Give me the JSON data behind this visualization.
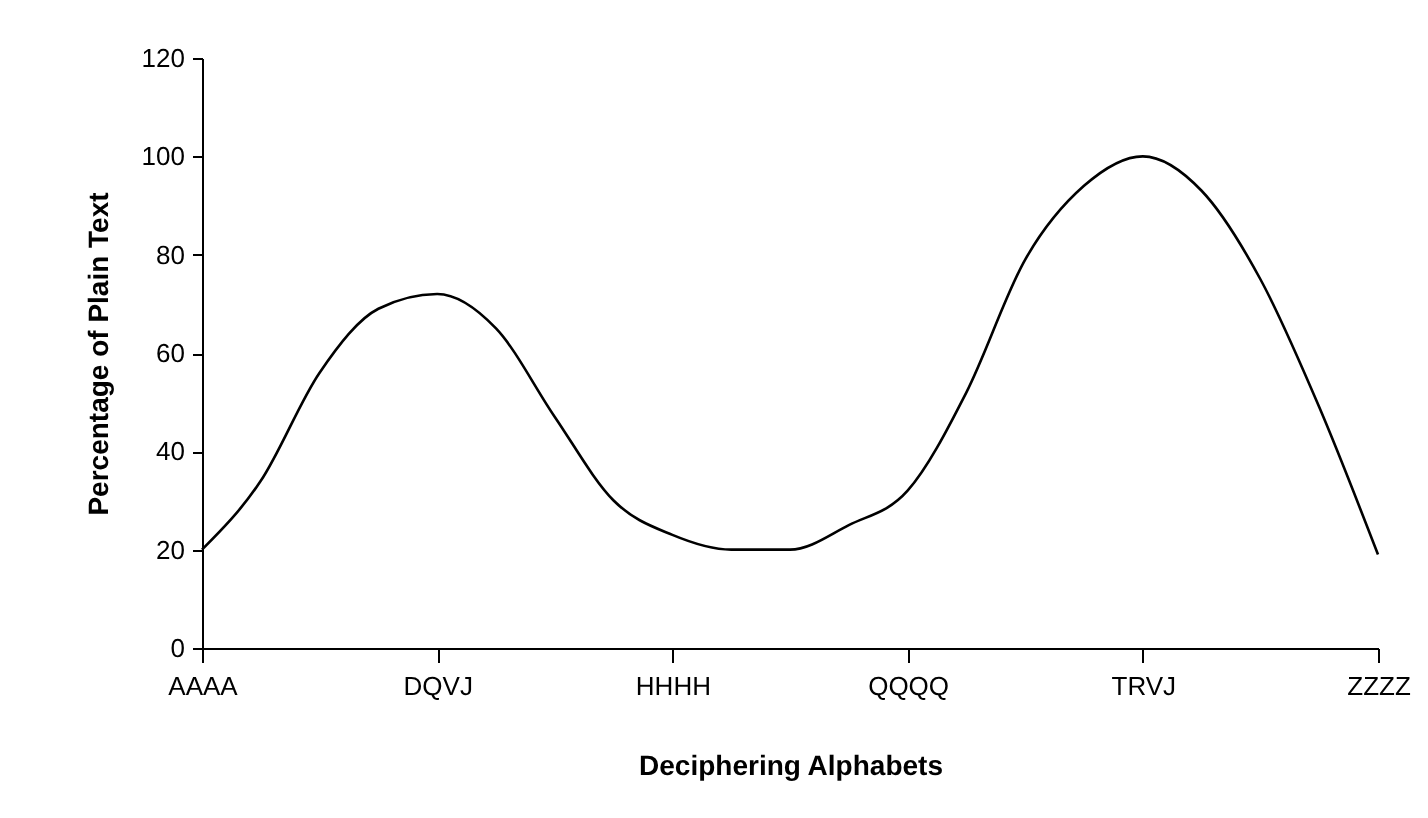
{
  "chart_data": {
    "type": "line",
    "xlabel": "Deciphering Alphabets",
    "ylabel": "Percentage of Plain Text",
    "categories": [
      "AAAA",
      null,
      null,
      null,
      "DQVJ",
      null,
      null,
      null,
      "HHHH",
      null,
      null,
      null,
      "QQQQ",
      null,
      null,
      null,
      "TRVJ",
      null,
      null,
      null,
      "ZZZZ"
    ],
    "series": [
      {
        "color": "#000000",
        "values": [
          20,
          34,
          56,
          69,
          72,
          65,
          47,
          30,
          23,
          20,
          20,
          25,
          32,
          52,
          79,
          94,
          100,
          93,
          75,
          49,
          19
        ]
      }
    ],
    "ylim": [
      0,
      120
    ],
    "yticks": [
      0,
      20,
      40,
      60,
      80,
      100,
      120
    ],
    "grid": false,
    "legend": false,
    "marker": "none",
    "line_style": "solid"
  }
}
